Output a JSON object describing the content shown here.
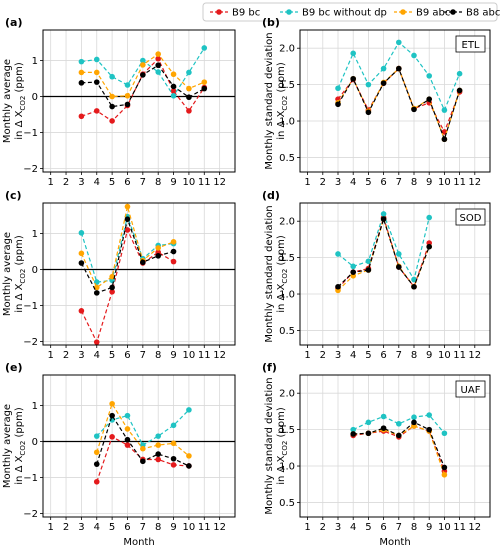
{
  "legend": [
    {
      "name": "B9 bc",
      "color": "#e41a1c"
    },
    {
      "name": "B9 bc without dp",
      "color": "#1fc3c3"
    },
    {
      "name": "B9 abc",
      "color": "#ffa500"
    },
    {
      "name": "B8 abc",
      "color": "#000000"
    }
  ],
  "xlabel": "Month",
  "ylabel_avg_line1": "Monthly average",
  "ylabel_avg_line2": "in Δ X",
  "ylabel_std_line1": "Monthly standard deviation",
  "ylabel_std_line2": "in Δ X",
  "ylabel_sub": "CO2",
  "ylabel_unit": " (ppm)",
  "chart_data": [
    {
      "panel": "(a)",
      "type": "line",
      "ylim": [
        -2.1,
        1.85
      ],
      "x_ticks": [
        1,
        2,
        3,
        4,
        5,
        6,
        7,
        8,
        9,
        10,
        11,
        12
      ],
      "y_ticks": [
        -2,
        -1,
        0,
        1
      ],
      "zero_line": true,
      "series": [
        {
          "name": "B9 bc",
          "x": [
            3,
            4,
            5,
            6,
            7,
            8,
            9,
            10,
            11
          ],
          "values": [
            -0.55,
            -0.4,
            -0.68,
            -0.25,
            0.62,
            1.05,
            0.15,
            -0.4,
            0.25
          ]
        },
        {
          "name": "B9 bc without dp",
          "x": [
            3,
            4,
            5,
            6,
            7,
            8,
            9,
            10,
            11
          ],
          "values": [
            0.97,
            1.03,
            0.55,
            0.32,
            1.0,
            0.68,
            0.02,
            0.67,
            1.35
          ]
        },
        {
          "name": "B9 abc",
          "x": [
            3,
            4,
            5,
            6,
            7,
            8,
            9,
            10,
            11
          ],
          "values": [
            0.67,
            0.67,
            0.0,
            0.02,
            0.88,
            1.18,
            0.62,
            0.22,
            0.4
          ]
        },
        {
          "name": "B8 abc",
          "x": [
            3,
            4,
            5,
            6,
            7,
            8,
            9,
            10,
            11
          ],
          "values": [
            0.38,
            0.4,
            -0.28,
            -0.22,
            0.6,
            0.87,
            0.28,
            -0.02,
            0.22
          ]
        }
      ]
    },
    {
      "panel": "(b)",
      "type": "line",
      "site": "ETL",
      "ylim": [
        0.3,
        2.25
      ],
      "x_ticks": [
        1,
        2,
        3,
        4,
        5,
        6,
        7,
        8,
        9,
        10,
        11,
        12
      ],
      "y_ticks": [
        0.5,
        1.0,
        1.5,
        2.0
      ],
      "zero_line": false,
      "series": [
        {
          "name": "B9 bc",
          "x": [
            3,
            4,
            5,
            6,
            7,
            8,
            9,
            10,
            11
          ],
          "values": [
            1.3,
            1.57,
            1.15,
            1.52,
            1.72,
            1.17,
            1.25,
            0.85,
            1.4
          ]
        },
        {
          "name": "B9 bc without dp",
          "x": [
            3,
            4,
            5,
            6,
            7,
            8,
            9,
            10,
            11
          ],
          "values": [
            1.45,
            1.93,
            1.5,
            1.72,
            2.08,
            1.9,
            1.62,
            1.15,
            1.65
          ]
        },
        {
          "name": "B9 abc",
          "x": [
            3,
            4,
            5,
            6,
            7,
            8,
            9,
            10,
            11
          ],
          "values": [
            1.25,
            1.58,
            1.13,
            1.53,
            1.72,
            1.17,
            1.3,
            0.75,
            1.42
          ]
        },
        {
          "name": "B8 abc",
          "x": [
            3,
            4,
            5,
            6,
            7,
            8,
            9,
            10,
            11
          ],
          "values": [
            1.23,
            1.58,
            1.12,
            1.52,
            1.72,
            1.16,
            1.3,
            0.75,
            1.42
          ]
        }
      ]
    },
    {
      "panel": "(c)",
      "type": "line",
      "ylim": [
        -2.1,
        1.85
      ],
      "x_ticks": [
        1,
        2,
        3,
        4,
        5,
        6,
        7,
        8,
        9,
        10,
        11,
        12
      ],
      "y_ticks": [
        -2,
        -1,
        0,
        1
      ],
      "zero_line": true,
      "series": [
        {
          "name": "B9 bc",
          "x": [
            3,
            4,
            5,
            6,
            7,
            8,
            9
          ],
          "values": [
            -1.15,
            -2.02,
            -0.62,
            1.1,
            0.18,
            0.48,
            0.22
          ]
        },
        {
          "name": "B9 bc without dp",
          "x": [
            3,
            4,
            5,
            6,
            7,
            8,
            9
          ],
          "values": [
            1.02,
            -0.35,
            -0.3,
            1.47,
            0.3,
            0.67,
            0.72
          ]
        },
        {
          "name": "B9 abc",
          "x": [
            3,
            4,
            5,
            6,
            7,
            8,
            9
          ],
          "values": [
            0.45,
            -0.5,
            -0.2,
            1.75,
            0.25,
            0.6,
            0.77
          ]
        },
        {
          "name": "B8 abc",
          "x": [
            3,
            4,
            5,
            6,
            7,
            8,
            9
          ],
          "values": [
            0.18,
            -0.65,
            -0.5,
            1.4,
            0.2,
            0.38,
            0.5
          ]
        }
      ]
    },
    {
      "panel": "(d)",
      "type": "line",
      "site": "SOD",
      "ylim": [
        0.3,
        2.25
      ],
      "x_ticks": [
        1,
        2,
        3,
        4,
        5,
        6,
        7,
        8,
        9,
        10,
        11,
        12
      ],
      "y_ticks": [
        0.5,
        1.0,
        1.5,
        2.0
      ],
      "zero_line": false,
      "series": [
        {
          "name": "B9 bc",
          "x": [
            3,
            4,
            5,
            6,
            7,
            8,
            9
          ],
          "values": [
            1.08,
            1.3,
            1.35,
            2.05,
            1.37,
            1.1,
            1.7
          ]
        },
        {
          "name": "B9 bc without dp",
          "x": [
            3,
            4,
            5,
            6,
            7,
            8,
            9
          ],
          "values": [
            1.55,
            1.38,
            1.45,
            2.1,
            1.55,
            1.2,
            2.05
          ]
        },
        {
          "name": "B9 abc",
          "x": [
            3,
            4,
            5,
            6,
            7,
            8,
            9
          ],
          "values": [
            1.05,
            1.25,
            1.33,
            2.03,
            1.38,
            1.1,
            1.65
          ]
        },
        {
          "name": "B8 abc",
          "x": [
            3,
            4,
            5,
            6,
            7,
            8,
            9
          ],
          "values": [
            1.1,
            1.3,
            1.33,
            2.03,
            1.37,
            1.1,
            1.65
          ]
        }
      ]
    },
    {
      "panel": "(e)",
      "type": "line",
      "ylim": [
        -2.1,
        1.85
      ],
      "x_ticks": [
        1,
        2,
        3,
        4,
        5,
        6,
        7,
        8,
        9,
        10,
        11,
        12
      ],
      "y_ticks": [
        -2,
        -1,
        0,
        1
      ],
      "zero_line": true,
      "series": [
        {
          "name": "B9 bc",
          "x": [
            4,
            5,
            6,
            7,
            8,
            9,
            10
          ],
          "values": [
            -1.12,
            0.13,
            -0.1,
            -0.5,
            -0.5,
            -0.65,
            -0.68
          ]
        },
        {
          "name": "B9 bc without dp",
          "x": [
            4,
            5,
            6,
            7,
            8,
            9,
            10
          ],
          "values": [
            0.15,
            0.6,
            0.72,
            -0.1,
            0.15,
            0.45,
            0.88
          ]
        },
        {
          "name": "B9 abc",
          "x": [
            4,
            5,
            6,
            7,
            8,
            9,
            10
          ],
          "values": [
            -0.3,
            1.05,
            0.35,
            -0.2,
            -0.1,
            -0.05,
            -0.4
          ]
        },
        {
          "name": "B8 abc",
          "x": [
            4,
            5,
            6,
            7,
            8,
            9,
            10
          ],
          "values": [
            -0.63,
            0.72,
            0.05,
            -0.55,
            -0.35,
            -0.48,
            -0.68
          ]
        }
      ]
    },
    {
      "panel": "(f)",
      "type": "line",
      "site": "UAF",
      "ylim": [
        0.3,
        2.25
      ],
      "x_ticks": [
        1,
        2,
        3,
        4,
        5,
        6,
        7,
        8,
        9,
        10,
        11,
        12
      ],
      "y_ticks": [
        0.5,
        1.0,
        1.5,
        2.0
      ],
      "zero_line": false,
      "series": [
        {
          "name": "B9 bc",
          "x": [
            4,
            5,
            6,
            7,
            8,
            9,
            10
          ],
          "values": [
            1.42,
            1.45,
            1.48,
            1.4,
            1.55,
            1.48,
            0.93
          ]
        },
        {
          "name": "B9 bc without dp",
          "x": [
            4,
            5,
            6,
            7,
            8,
            9,
            10
          ],
          "values": [
            1.5,
            1.6,
            1.68,
            1.58,
            1.67,
            1.7,
            1.45
          ]
        },
        {
          "name": "B9 abc",
          "x": [
            4,
            5,
            6,
            7,
            8,
            9,
            10
          ],
          "values": [
            1.44,
            1.45,
            1.5,
            1.42,
            1.55,
            1.48,
            0.88
          ]
        },
        {
          "name": "B8 abc",
          "x": [
            4,
            5,
            6,
            7,
            8,
            9,
            10
          ],
          "values": [
            1.44,
            1.45,
            1.52,
            1.42,
            1.6,
            1.5,
            0.98
          ]
        }
      ]
    }
  ]
}
